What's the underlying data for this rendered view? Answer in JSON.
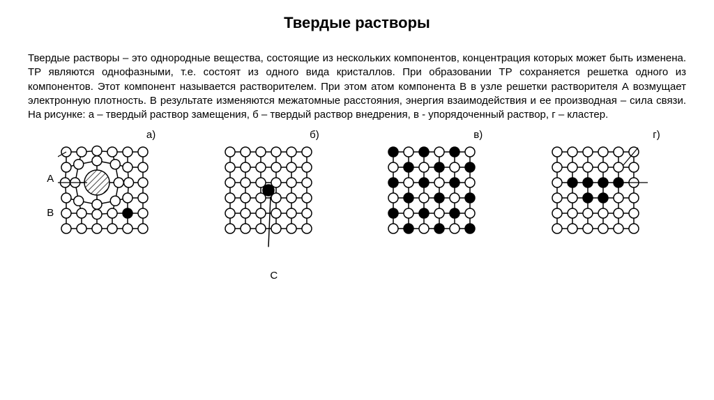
{
  "title": "Твердые растворы",
  "paragraph": "Твердые растворы – это однородные вещества, состоящие из нескольких компонентов, концентрация которых может быть изменена. ТР являются однофазными, т.е. состоят из одного вида кристаллов. При образовании ТР сохраняется решетка одного из компонентов. Этот компонент называется растворителем. При этом атом компонента В в узле решетки растворителя А возмущает электронную плотность. В результате изменяются межатомные расстояния, энергия взаимодействия и ее производная – сила связи. На рисунке: а – твердый раствор замещения, б – твердый раствор внедрения, в -  упорядоченный раствор, г – кластер.",
  "labels": {
    "a": "а)",
    "b": "б)",
    "v": "в)",
    "g": "г)",
    "A": "А",
    "B": "В",
    "C": "С"
  },
  "diagram": {
    "grid_size": 6,
    "cell": 22,
    "atom_r": 7,
    "big_r": 18,
    "colors": {
      "stroke": "#000000",
      "open_fill": "#ffffff",
      "solid_fill": "#000000",
      "bg": "#ffffff"
    },
    "stroke_width": 1.5,
    "a": {
      "solid_positions": [
        [
          4,
          4
        ]
      ],
      "big_hatched": [
        2,
        2
      ],
      "distorted": true
    },
    "b": {
      "interstitial": [
        2.5,
        2.5
      ],
      "pointer_from": [
        2.5,
        6.2
      ]
    },
    "v": {
      "solid_positions": [
        [
          0,
          0
        ],
        [
          2,
          0
        ],
        [
          4,
          0
        ],
        [
          1,
          1
        ],
        [
          3,
          1
        ],
        [
          5,
          1
        ],
        [
          0,
          2
        ],
        [
          2,
          2
        ],
        [
          4,
          2
        ],
        [
          1,
          3
        ],
        [
          3,
          3
        ],
        [
          5,
          3
        ],
        [
          0,
          4
        ],
        [
          2,
          4
        ],
        [
          4,
          4
        ],
        [
          1,
          5
        ],
        [
          3,
          5
        ],
        [
          5,
          5
        ]
      ]
    },
    "g": {
      "solid_positions": [
        [
          1,
          2
        ],
        [
          2,
          2
        ],
        [
          3,
          2
        ],
        [
          4,
          2
        ],
        [
          2,
          3
        ],
        [
          3,
          3
        ]
      ]
    }
  }
}
